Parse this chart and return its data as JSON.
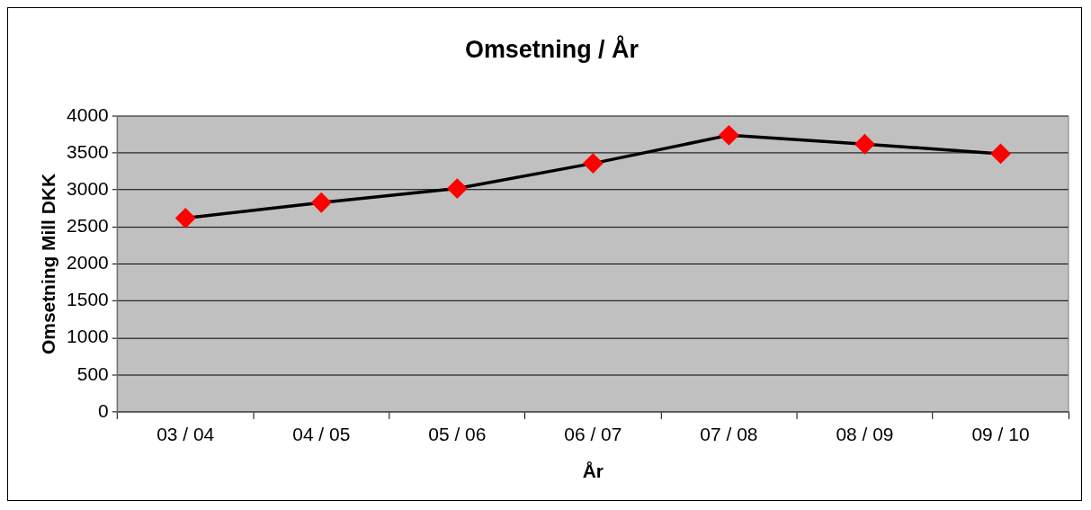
{
  "chart_data": {
    "type": "line",
    "title": "Omsetning / År",
    "xlabel": "År",
    "ylabel": "Omsetning Mill DKK",
    "categories": [
      "03 / 04",
      "04 / 05",
      "05 / 06",
      "06 / 07",
      "07 / 08",
      "08 / 09",
      "09 / 10"
    ],
    "series": [
      {
        "color": "#000000",
        "colors": [
          "#ff0000",
          "#ff0000",
          "#ff0000",
          "#ff0000",
          "#ff0000",
          "#ff0000",
          "#ff0000"
        ],
        "values": [
          2620,
          2830,
          3020,
          3360,
          3740,
          3620,
          3490
        ]
      }
    ],
    "ylim": [
      0,
      4000
    ],
    "yticks": [
      0,
      500,
      1000,
      1500,
      2000,
      2500,
      3000,
      3500,
      4000
    ],
    "grid": "y",
    "legend": false,
    "marker": "diamond",
    "line_style": "solid"
  }
}
